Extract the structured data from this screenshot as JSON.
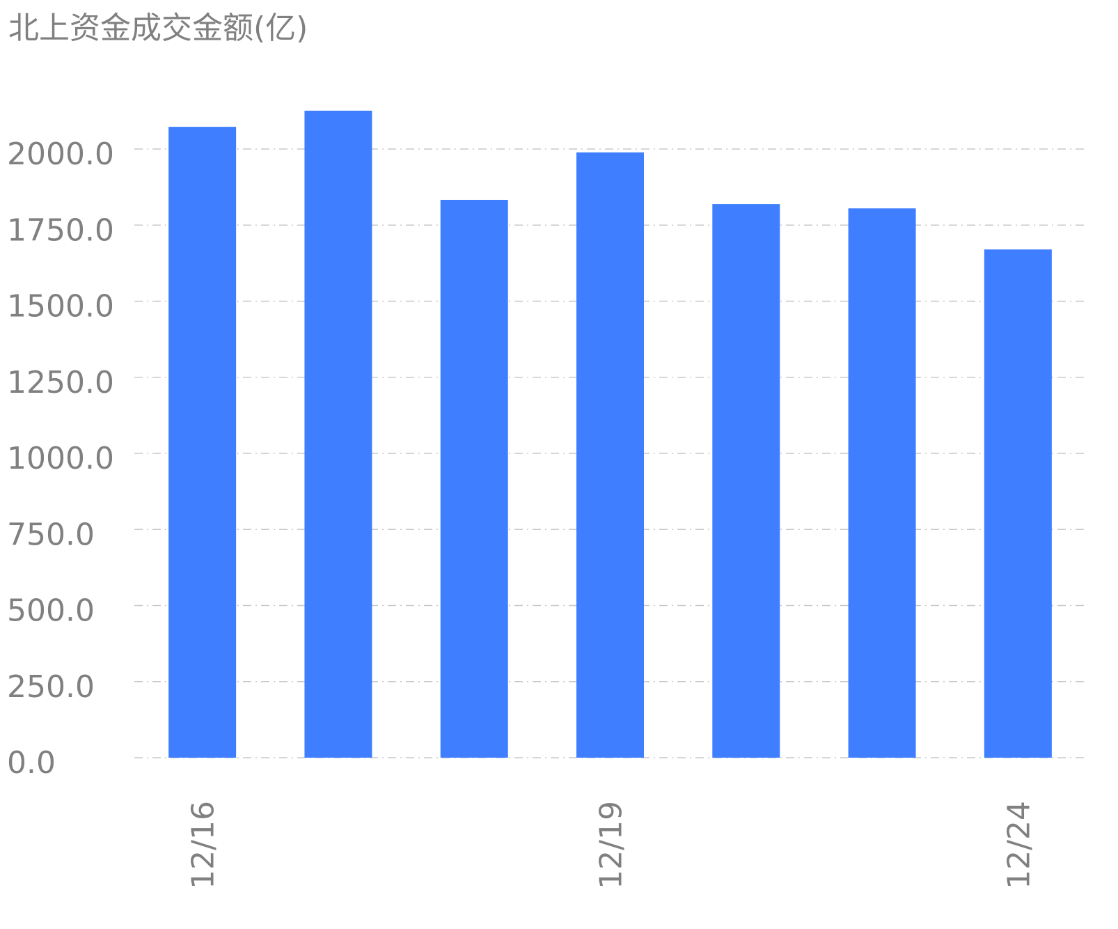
{
  "chart_data": {
    "type": "bar",
    "title": "北上资金成交金额(亿)",
    "xlabel": "",
    "ylabel": "",
    "bar_count": 7,
    "x_tick_labels": [
      {
        "index": 0,
        "label": "12/16"
      },
      {
        "index": 3,
        "label": "12/19"
      },
      {
        "index": 6,
        "label": "12/24"
      }
    ],
    "values": [
      2073,
      2126,
      1833,
      1989,
      1819,
      1805,
      1670
    ],
    "ylim": [
      0,
      2250
    ],
    "yticks": [
      "0.0",
      "250.0",
      "500.0",
      "750.0",
      "1000.0",
      "1250.0",
      "1500.0",
      "1750.0",
      "2000.0"
    ],
    "grid": true,
    "grid_style": "dash-dot",
    "colors": {
      "bar": "#3f7fff",
      "grid": "#c8c8c8",
      "text": "#808080"
    }
  }
}
